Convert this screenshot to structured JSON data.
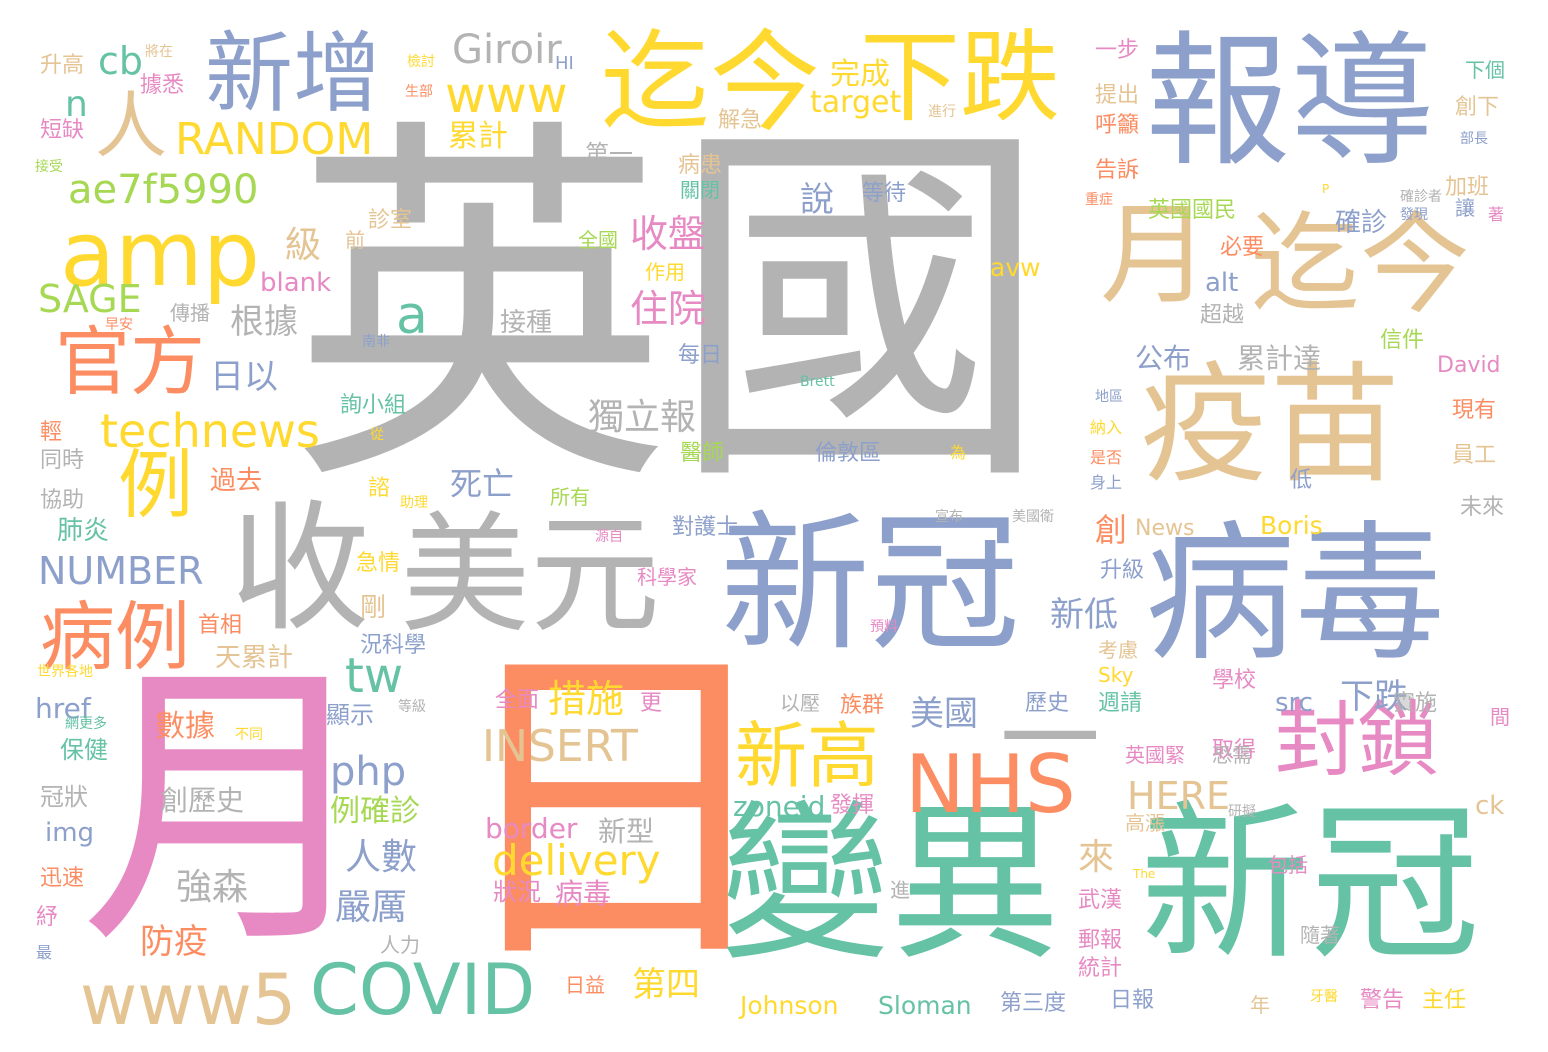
{
  "palette": {
    "gray": "#b3b3b3",
    "blue": "#8da0cb",
    "green": "#66c2a5",
    "orange": "#fc8d62",
    "pink": "#e78ac3",
    "yellow": "#ffd92f",
    "tan": "#e5c494",
    "lime": "#a6d854"
  },
  "words": [
    {
      "text": "英國",
      "color": "gray"
    },
    {
      "text": "日",
      "color": "orange"
    },
    {
      "text": "月",
      "color": "pink"
    },
    {
      "text": "變異",
      "color": "green"
    },
    {
      "text": "新冠",
      "color": "green"
    },
    {
      "text": "新冠",
      "color": "blue"
    },
    {
      "text": "病毒",
      "color": "blue"
    },
    {
      "text": "報導",
      "color": "blue"
    },
    {
      "text": "疫苗",
      "color": "tan"
    },
    {
      "text": "迄今",
      "color": "yellow"
    },
    {
      "text": "迄今",
      "color": "tan"
    },
    {
      "text": "下跌",
      "color": "yellow"
    },
    {
      "text": "收",
      "color": "gray"
    },
    {
      "text": "美元",
      "color": "gray"
    },
    {
      "text": "一",
      "color": "gray"
    },
    {
      "text": "月",
      "color": "tan"
    },
    {
      "text": "新增",
      "color": "blue"
    },
    {
      "text": "amp",
      "color": "yellow"
    },
    {
      "text": "NHS",
      "color": "orange"
    },
    {
      "text": "COVID",
      "color": "green"
    },
    {
      "text": "www5",
      "color": "tan"
    },
    {
      "text": "封鎖",
      "color": "pink"
    },
    {
      "text": "新高",
      "color": "yellow"
    },
    {
      "text": "病例",
      "color": "orange"
    },
    {
      "text": "官方",
      "color": "orange"
    },
    {
      "text": "例",
      "color": "yellow"
    },
    {
      "text": "人",
      "color": "tan"
    },
    {
      "text": "technews",
      "color": "yellow"
    },
    {
      "text": "www",
      "color": "yellow"
    },
    {
      "text": "RANDOM",
      "color": "yellow"
    },
    {
      "text": "INSERT",
      "color": "tan"
    },
    {
      "text": "delivery",
      "color": "yellow"
    },
    {
      "text": "ae7f5990",
      "color": "lime"
    },
    {
      "text": "Giroir",
      "color": "gray"
    },
    {
      "text": "NUMBER",
      "color": "blue"
    },
    {
      "text": "SAGE",
      "color": "lime"
    },
    {
      "text": "php",
      "color": "blue"
    },
    {
      "text": "HERE",
      "color": "tan"
    },
    {
      "text": "tw",
      "color": "green"
    },
    {
      "text": "a",
      "color": "green"
    },
    {
      "text": "cb",
      "color": "green"
    },
    {
      "text": "n",
      "color": "green"
    },
    {
      "text": "收盤",
      "color": "pink"
    },
    {
      "text": "住院",
      "color": "pink"
    },
    {
      "text": "措施",
      "color": "yellow"
    },
    {
      "text": "強森",
      "color": "gray"
    },
    {
      "text": "獨立報",
      "color": "gray"
    },
    {
      "text": "根據",
      "color": "gray"
    },
    {
      "text": "日以",
      "color": "blue"
    },
    {
      "text": "防疫",
      "color": "orange"
    },
    {
      "text": "人數",
      "color": "blue"
    },
    {
      "text": "嚴厲",
      "color": "blue"
    },
    {
      "text": "美國",
      "color": "blue"
    },
    {
      "text": "下跌",
      "color": "blue"
    },
    {
      "text": "新低",
      "color": "blue"
    },
    {
      "text": "第四",
      "color": "yellow"
    },
    {
      "text": "來",
      "color": "tan"
    },
    {
      "text": "說",
      "color": "blue"
    },
    {
      "text": "級",
      "color": "tan"
    },
    {
      "text": "死亡",
      "color": "blue"
    },
    {
      "text": "數據",
      "color": "orange"
    },
    {
      "text": "創歷史",
      "color": "gray"
    },
    {
      "text": "例確診",
      "color": "lime"
    },
    {
      "text": "累計",
      "color": "yellow"
    },
    {
      "text": "完成",
      "color": "yellow"
    },
    {
      "text": "target",
      "color": "yellow"
    },
    {
      "text": "zoneid",
      "color": "green"
    },
    {
      "text": "border",
      "color": "pink"
    },
    {
      "text": "blank",
      "color": "pink"
    },
    {
      "text": "Johnson",
      "color": "yellow"
    },
    {
      "text": "Sloman",
      "color": "green"
    },
    {
      "text": "Boris",
      "color": "yellow"
    },
    {
      "text": "avw",
      "color": "yellow"
    },
    {
      "text": "alt",
      "color": "blue"
    },
    {
      "text": "src",
      "color": "blue"
    },
    {
      "text": "ck",
      "color": "tan"
    },
    {
      "text": "href",
      "color": "blue"
    },
    {
      "text": "img",
      "color": "blue"
    },
    {
      "text": "News",
      "color": "tan"
    },
    {
      "text": "David",
      "color": "pink"
    },
    {
      "text": "Sky",
      "color": "yellow"
    },
    {
      "text": "Brett",
      "color": "green"
    },
    {
      "text": "The",
      "color": "yellow"
    },
    {
      "text": "HI",
      "color": "blue"
    },
    {
      "text": "P",
      "color": "yellow"
    },
    {
      "text": "確診",
      "color": "blue"
    },
    {
      "text": "公布",
      "color": "blue"
    },
    {
      "text": "累計達",
      "color": "gray"
    },
    {
      "text": "英國國民",
      "color": "lime"
    },
    {
      "text": "肺炎",
      "color": "green"
    },
    {
      "text": "過去",
      "color": "orange"
    },
    {
      "text": "天累計",
      "color": "tan"
    },
    {
      "text": "首相",
      "color": "orange"
    },
    {
      "text": "新型",
      "color": "gray"
    },
    {
      "text": "病毒",
      "color": "pink"
    },
    {
      "text": "狀況",
      "color": "pink"
    },
    {
      "text": "更",
      "color": "pink"
    },
    {
      "text": "全面",
      "color": "pink"
    },
    {
      "text": "武漢",
      "color": "pink"
    },
    {
      "text": "郵報",
      "color": "pink"
    },
    {
      "text": "統計",
      "color": "pink"
    },
    {
      "text": "日報",
      "color": "blue"
    },
    {
      "text": "第三度",
      "color": "blue"
    },
    {
      "text": "警告",
      "color": "pink"
    },
    {
      "text": "主任",
      "color": "yellow"
    },
    {
      "text": "顯示",
      "color": "blue"
    },
    {
      "text": "冠狀",
      "color": "gray"
    },
    {
      "text": "保健",
      "color": "green"
    },
    {
      "text": "迅速",
      "color": "orange"
    },
    {
      "text": "升高",
      "color": "tan"
    },
    {
      "text": "據悉",
      "color": "pink"
    },
    {
      "text": "短缺",
      "color": "pink"
    },
    {
      "text": "協助",
      "color": "gray"
    },
    {
      "text": "同時",
      "color": "gray"
    },
    {
      "text": "接種",
      "color": "gray"
    },
    {
      "text": "等待",
      "color": "blue"
    },
    {
      "text": "病患",
      "color": "tan"
    },
    {
      "text": "關閉",
      "color": "green"
    },
    {
      "text": "第一",
      "color": "gray"
    },
    {
      "text": "解急",
      "color": "tan"
    },
    {
      "text": "作用",
      "color": "yellow"
    },
    {
      "text": "每日",
      "color": "blue"
    },
    {
      "text": "傳播",
      "color": "gray"
    },
    {
      "text": "倫敦區",
      "color": "blue"
    },
    {
      "text": "醫師",
      "color": "lime"
    },
    {
      "text": "所有",
      "color": "lime"
    },
    {
      "text": "對護士",
      "color": "blue"
    },
    {
      "text": "科學家",
      "color": "pink"
    },
    {
      "text": "急情",
      "color": "yellow"
    },
    {
      "text": "況科學",
      "color": "blue"
    },
    {
      "text": "創",
      "color": "orange"
    },
    {
      "text": "剛",
      "color": "tan"
    },
    {
      "text": "升級",
      "color": "blue"
    },
    {
      "text": "考慮",
      "color": "tan"
    },
    {
      "text": "歷史",
      "color": "blue"
    },
    {
      "text": "週請",
      "color": "green"
    },
    {
      "text": "族群",
      "color": "orange"
    },
    {
      "text": "以壓",
      "color": "gray"
    },
    {
      "text": "取得",
      "color": "pink"
    },
    {
      "text": "學校",
      "color": "pink"
    },
    {
      "text": "實施",
      "color": "gray"
    },
    {
      "text": "英國緊",
      "color": "pink"
    },
    {
      "text": "恐需",
      "color": "gray"
    },
    {
      "text": "高漲",
      "color": "tan"
    },
    {
      "text": "發揮",
      "color": "pink"
    },
    {
      "text": "包括",
      "color": "pink"
    },
    {
      "text": "隨著",
      "color": "gray"
    },
    {
      "text": "年",
      "color": "tan"
    },
    {
      "text": "日益",
      "color": "orange"
    },
    {
      "text": "人力",
      "color": "gray"
    },
    {
      "text": "進",
      "color": "gray"
    },
    {
      "text": "紓",
      "color": "pink"
    },
    {
      "text": "最",
      "color": "blue"
    },
    {
      "text": "一步",
      "color": "pink"
    },
    {
      "text": "提出",
      "color": "tan"
    },
    {
      "text": "呼籲",
      "color": "orange"
    },
    {
      "text": "告訴",
      "color": "orange"
    },
    {
      "text": "創下",
      "color": "tan"
    },
    {
      "text": "下個",
      "color": "green"
    },
    {
      "text": "加班",
      "color": "tan"
    },
    {
      "text": "讓",
      "color": "blue"
    },
    {
      "text": "著",
      "color": "pink"
    },
    {
      "text": "必要",
      "color": "orange"
    },
    {
      "text": "超越",
      "color": "gray"
    },
    {
      "text": "信件",
      "color": "lime"
    },
    {
      "text": "現有",
      "color": "orange"
    },
    {
      "text": "員工",
      "color": "tan"
    },
    {
      "text": "低",
      "color": "blue"
    },
    {
      "text": "未來",
      "color": "gray"
    },
    {
      "text": "間",
      "color": "pink"
    },
    {
      "text": "身上",
      "color": "blue"
    },
    {
      "text": "是否",
      "color": "orange"
    },
    {
      "text": "納入",
      "color": "yellow"
    },
    {
      "text": "為",
      "color": "yellow"
    },
    {
      "text": "全國",
      "color": "lime"
    },
    {
      "text": "診室",
      "color": "tan"
    },
    {
      "text": "前",
      "color": "tan"
    },
    {
      "text": "詢小組",
      "color": "green"
    },
    {
      "text": "早安",
      "color": "orange"
    },
    {
      "text": "南非",
      "color": "blue"
    },
    {
      "text": "從",
      "color": "yellow"
    },
    {
      "text": "輕",
      "color": "orange"
    },
    {
      "text": "諮",
      "color": "yellow"
    },
    {
      "text": "助理",
      "color": "yellow"
    },
    {
      "text": "源自",
      "color": "pink"
    },
    {
      "text": "預料",
      "color": "pink"
    },
    {
      "text": "世界各地",
      "color": "yellow"
    },
    {
      "text": "網更多",
      "color": "green"
    },
    {
      "text": "等級",
      "color": "gray"
    },
    {
      "text": "不同",
      "color": "yellow"
    },
    {
      "text": "研擬",
      "color": "gray"
    },
    {
      "text": "接受",
      "color": "lime"
    },
    {
      "text": "將在",
      "color": "tan"
    },
    {
      "text": "檢討",
      "color": "yellow"
    },
    {
      "text": "生部",
      "color": "orange"
    },
    {
      "text": "進行",
      "color": "tan"
    },
    {
      "text": "部長",
      "color": "blue"
    },
    {
      "text": "確診者",
      "color": "gray"
    },
    {
      "text": "發現",
      "color": "blue"
    },
    {
      "text": "重症",
      "color": "orange"
    },
    {
      "text": "地區",
      "color": "blue"
    },
    {
      "text": "宣布",
      "color": "gray"
    },
    {
      "text": "美國衛",
      "color": "gray"
    },
    {
      "text": "牙醫",
      "color": "yellow"
    }
  ]
}
